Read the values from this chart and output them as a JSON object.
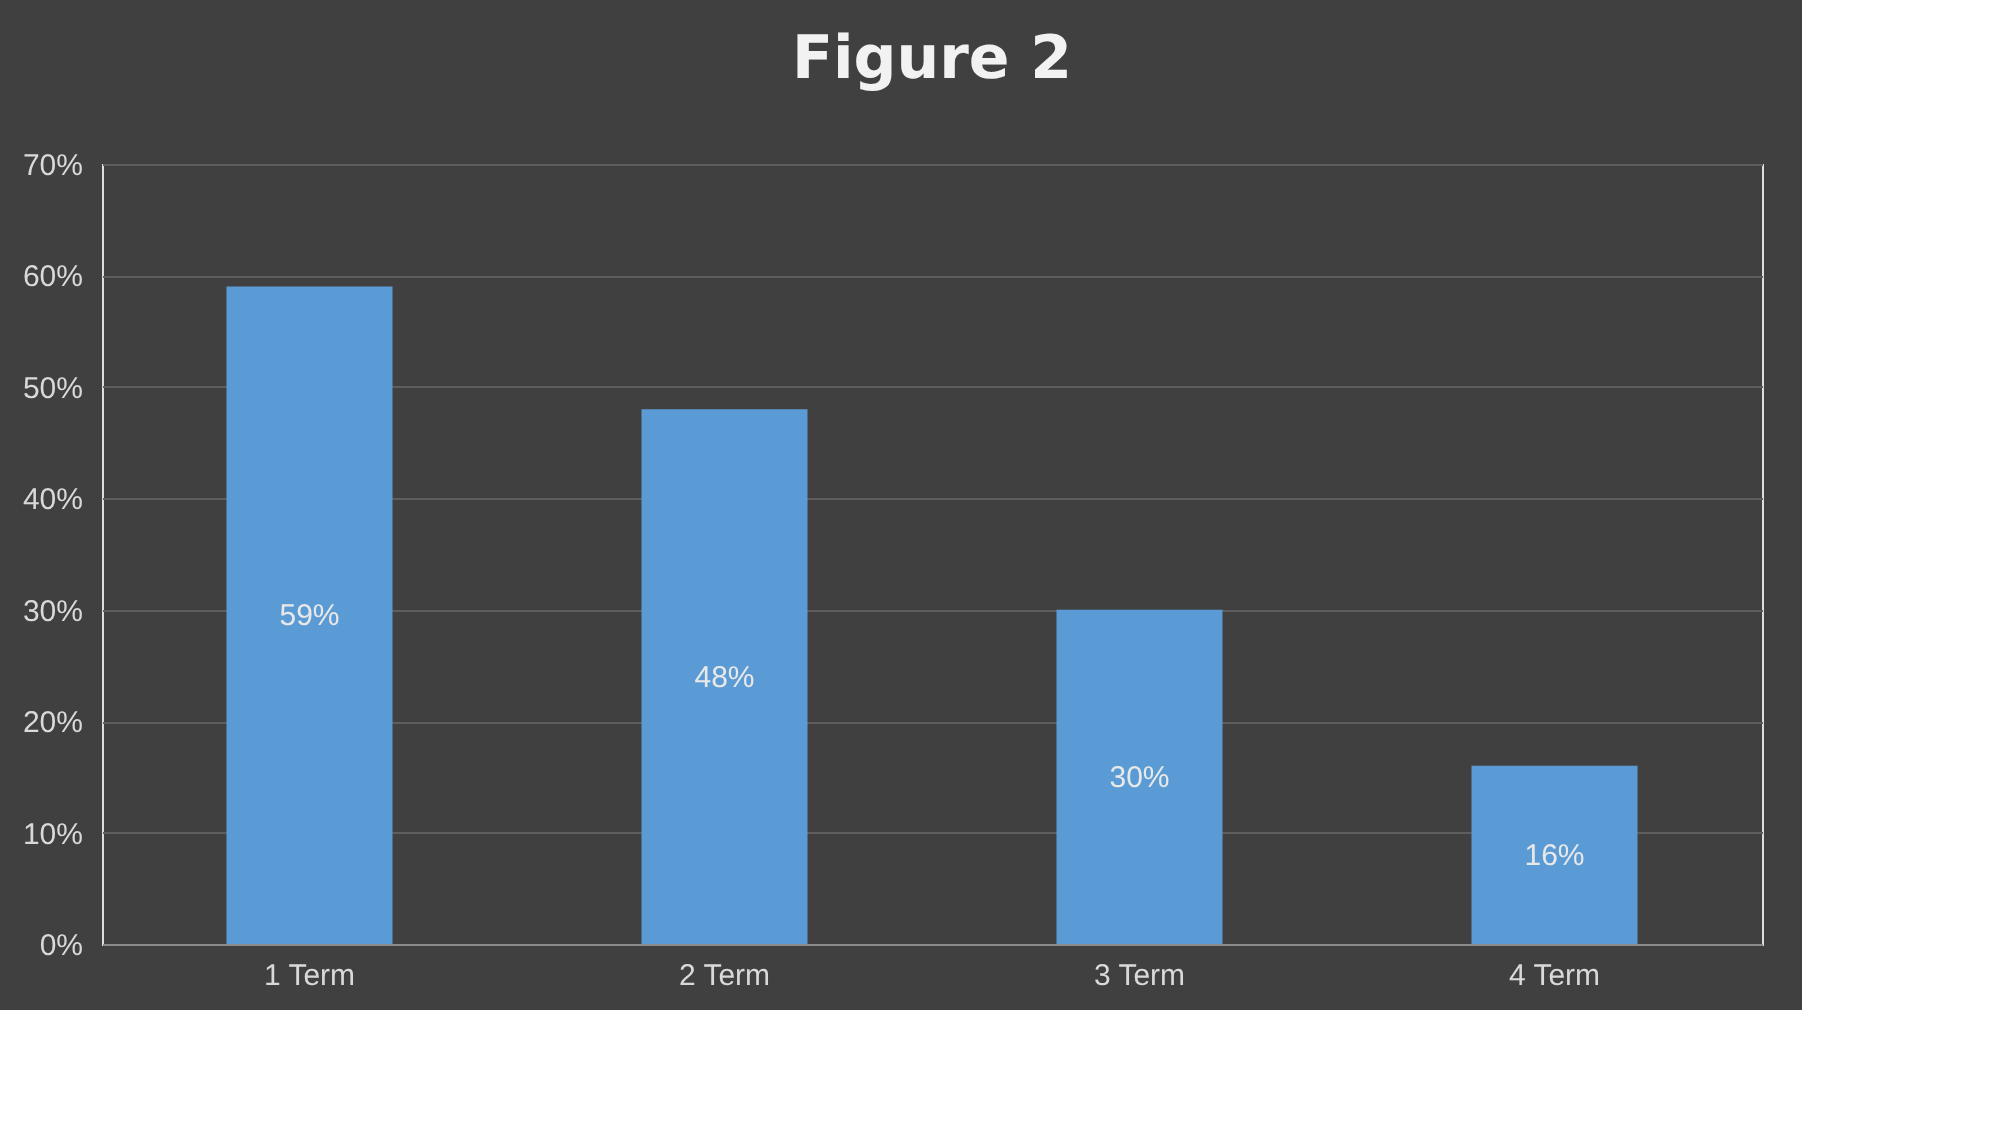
{
  "chart_data": {
    "type": "bar",
    "title": "Figure 2",
    "categories": [
      "1 Term",
      "2 Term",
      "3 Term",
      "4 Term"
    ],
    "values": [
      59,
      48,
      30,
      16
    ],
    "value_labels": [
      "59%",
      "48%",
      "30%",
      "16%"
    ],
    "color": "#5b9bd5",
    "ylim": [
      0,
      70
    ],
    "yticks": [
      {
        "value": 0,
        "label": "0%"
      },
      {
        "value": 10,
        "label": "10%"
      },
      {
        "value": 20,
        "label": "20%"
      },
      {
        "value": 30,
        "label": "30%"
      },
      {
        "value": 40,
        "label": "40%"
      },
      {
        "value": 50,
        "label": "50%"
      },
      {
        "value": 60,
        "label": "60%"
      },
      {
        "value": 70,
        "label": "70%"
      }
    ],
    "grid": "y"
  }
}
